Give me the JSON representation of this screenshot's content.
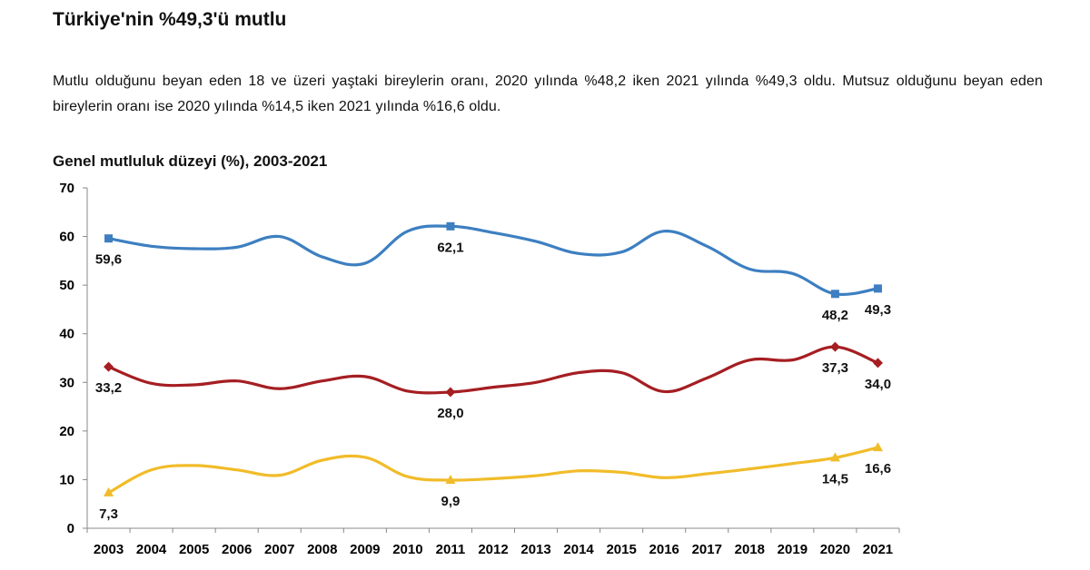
{
  "headline": "Türkiye'nin %49,3'ü mutlu",
  "summary": "Mutlu olduğunu beyan eden 18 ve üzeri yaştaki bireylerin oranı, 2020 yılında %48,2 iken 2021 yılında %49,3 oldu. Mutsuz olduğunu beyan eden bireylerin oranı ise 2020 yılında %14,5 iken 2021 yılında %16,6 oldu.",
  "chart_data": {
    "type": "line",
    "title": "Genel mutluluk düzeyi (%), 2003-2021",
    "xlabel": "",
    "ylabel": "",
    "ylim": [
      0,
      70
    ],
    "yticks": [
      "0",
      "10",
      "20",
      "30",
      "40",
      "50",
      "60",
      "70"
    ],
    "grid": false,
    "legend": "none",
    "categories": [
      "2003",
      "2004",
      "2005",
      "2006",
      "2007",
      "2008",
      "2009",
      "2010",
      "2011",
      "2012",
      "2013",
      "2014",
      "2015",
      "2016",
      "2017",
      "2018",
      "2019",
      "2020",
      "2021"
    ],
    "series": [
      {
        "color": "#3d7fc1",
        "marker": "square",
        "values": [
          59.6,
          58.0,
          57.5,
          57.8,
          60.0,
          55.8,
          54.5,
          61.1,
          62.1,
          60.8,
          59.0,
          56.5,
          56.8,
          61.1,
          58.0,
          53.3,
          52.4,
          48.2,
          49.3
        ],
        "labels": [
          {
            "index": 0,
            "text": "59,6",
            "pos": "below"
          },
          {
            "index": 8,
            "text": "62,1",
            "pos": "below"
          },
          {
            "index": 17,
            "text": "48,2",
            "pos": "below"
          },
          {
            "index": 18,
            "text": "49,3",
            "pos": "below"
          }
        ]
      },
      {
        "color": "#a51e22",
        "marker": "diamond",
        "values": [
          33.2,
          29.8,
          29.5,
          30.3,
          28.7,
          30.3,
          31.2,
          28.2,
          28.0,
          29.0,
          30.0,
          32.0,
          32.0,
          28.1,
          30.9,
          34.6,
          34.6,
          37.3,
          34.0
        ],
        "labels": [
          {
            "index": 0,
            "text": "33,2",
            "pos": "below"
          },
          {
            "index": 8,
            "text": "28,0",
            "pos": "below"
          },
          {
            "index": 17,
            "text": "37,3",
            "pos": "below"
          },
          {
            "index": 18,
            "text": "34,0",
            "pos": "below"
          }
        ]
      },
      {
        "color": "#f1bc2a",
        "marker": "triangle",
        "values": [
          7.3,
          12.0,
          12.9,
          12.0,
          10.9,
          14.0,
          14.6,
          10.6,
          9.9,
          10.2,
          10.8,
          11.8,
          11.5,
          10.4,
          11.2,
          12.2,
          13.3,
          14.5,
          16.6
        ],
        "labels": [
          {
            "index": 0,
            "text": "7,3",
            "pos": "below"
          },
          {
            "index": 8,
            "text": "9,9",
            "pos": "below"
          },
          {
            "index": 17,
            "text": "14,5",
            "pos": "below"
          },
          {
            "index": 18,
            "text": "16,6",
            "pos": "below"
          }
        ]
      }
    ]
  }
}
